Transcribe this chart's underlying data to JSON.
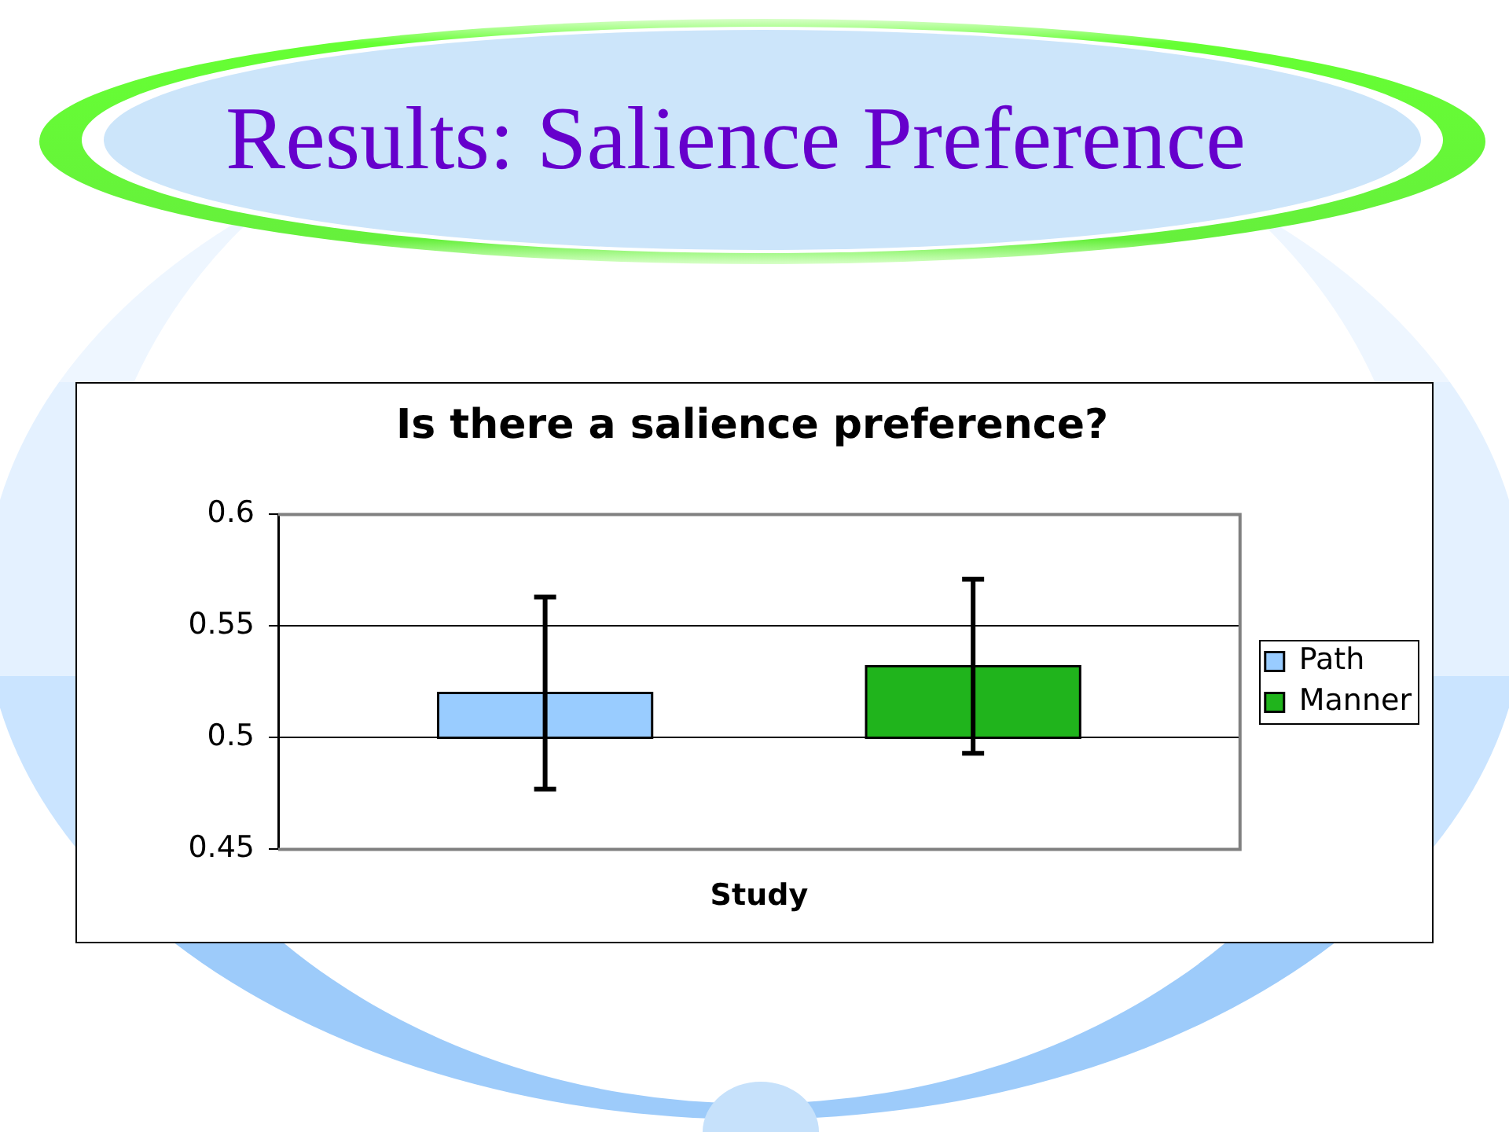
{
  "chart_data": {
    "type": "bar",
    "title": "Results: Salience Preference",
    "subtitle": "Is there a salience preference?",
    "xlabel": "Study",
    "categories": [
      null
    ],
    "series": [
      {
        "name": "Path",
        "color": "#99ccff",
        "base": [
          0.5
        ],
        "values": [
          0.02
        ],
        "errors": [
          0.043
        ]
      },
      {
        "name": "Manner",
        "color": "#20b41c",
        "base": [
          0.5
        ],
        "values": [
          0.032
        ],
        "errors": [
          0.039
        ]
      }
    ],
    "ylim": [
      0.45,
      0.6
    ],
    "yticks": [
      0.45,
      0.5,
      0.55,
      0.6
    ],
    "grid": "y",
    "legend": "right"
  }
}
